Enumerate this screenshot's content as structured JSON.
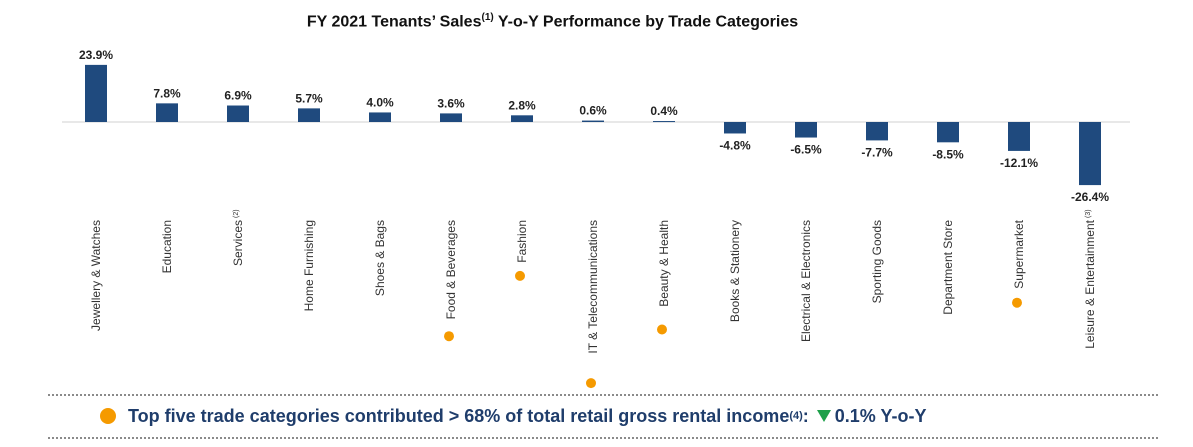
{
  "chart_data": {
    "type": "bar",
    "title": "FY 2021 Tenants’ Sales",
    "title_sup": "(1)",
    "title_rest": " Y-o-Y Performance by Trade Categories",
    "xlabel": "",
    "ylabel": "",
    "ylim": [
      -30,
      26
    ],
    "grid": false,
    "categories": [
      {
        "label": "Jewellery & Watches",
        "sup": "",
        "top_five": false
      },
      {
        "label": "Education",
        "sup": "",
        "top_five": false
      },
      {
        "label": "Services",
        "sup": "(2)",
        "top_five": false
      },
      {
        "label": "Home Furnishing",
        "sup": "",
        "top_five": false
      },
      {
        "label": "Shoes & Bags",
        "sup": "",
        "top_five": false
      },
      {
        "label": "Food & Beverages",
        "sup": "",
        "top_five": true
      },
      {
        "label": "Fashion",
        "sup": "",
        "top_five": true
      },
      {
        "label": "IT & Telecommunications",
        "sup": "",
        "top_five": true
      },
      {
        "label": "Beauty & Health",
        "sup": "",
        "top_five": true
      },
      {
        "label": "Books & Stationery",
        "sup": "",
        "top_five": false
      },
      {
        "label": "Electrical & Electronics",
        "sup": "",
        "top_five": false
      },
      {
        "label": "Sporting Goods",
        "sup": "",
        "top_five": false
      },
      {
        "label": "Department Store",
        "sup": "",
        "top_five": false
      },
      {
        "label": "Supermarket",
        "sup": "",
        "top_five": true
      },
      {
        "label": "Leisure & Entertainment",
        "sup": "(3)",
        "top_five": false
      }
    ],
    "values": [
      23.9,
      7.8,
      6.9,
      5.7,
      4.0,
      3.6,
      2.8,
      0.6,
      0.4,
      -4.8,
      -6.5,
      -7.7,
      -8.5,
      -12.1,
      -26.4
    ],
    "value_labels": [
      "23.9%",
      "7.8%",
      "6.9%",
      "5.7%",
      "4.0%",
      "3.6%",
      "2.8%",
      "0.6%",
      "0.4%",
      "-4.8%",
      "-6.5%",
      "-7.7%",
      "-8.5%",
      "-12.1%",
      "-26.4%"
    ],
    "colors": {
      "bar": "#1f4a7e",
      "marker": "#f59a00",
      "baseline": "#d0d0d0",
      "text": "#222222"
    }
  },
  "footer": {
    "text": "Top five trade categories contributed > 68% of total retail gross rental income",
    "sup": "(4)",
    "colon": ":",
    "change": "0.1% Y-o-Y",
    "direction": "down",
    "marker_color": "#f59a00",
    "arrow_color": "#1ea04a"
  }
}
